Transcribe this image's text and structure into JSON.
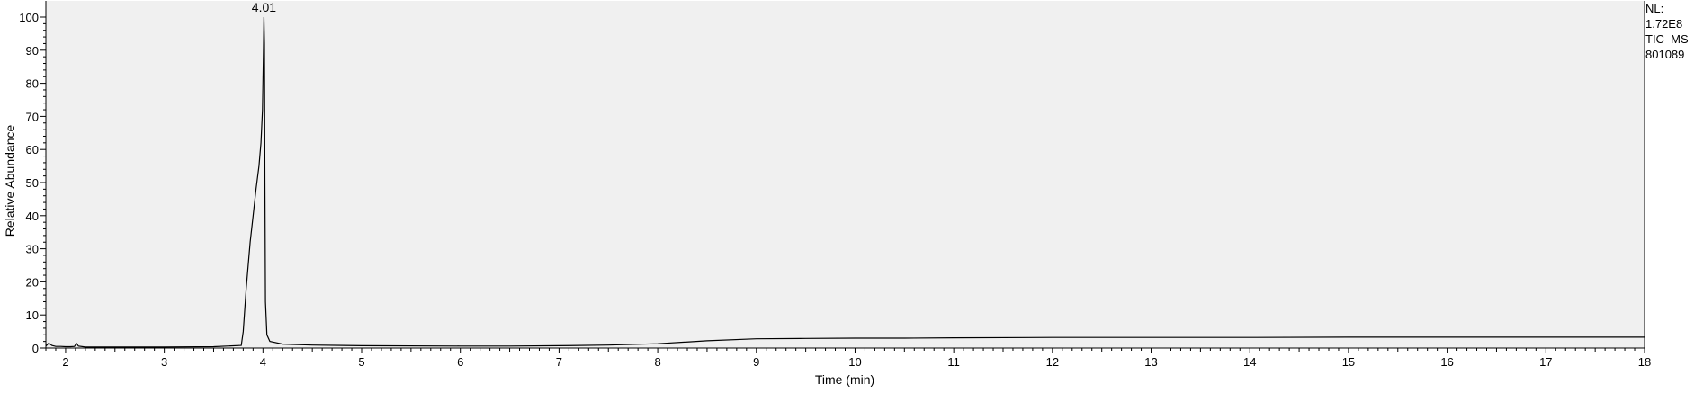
{
  "chart_data": {
    "type": "line",
    "title": "",
    "xlabel": "Time (min)",
    "ylabel": "Relative Abundance",
    "xlim": [
      1.8,
      18
    ],
    "ylim": [
      0,
      100
    ],
    "x_ticks": [
      2,
      3,
      4,
      5,
      6,
      7,
      8,
      9,
      10,
      11,
      12,
      13,
      14,
      15,
      16,
      17,
      18
    ],
    "y_ticks": [
      0,
      10,
      20,
      30,
      40,
      50,
      60,
      70,
      80,
      90,
      100
    ],
    "grid": false,
    "plot_background": "#f0f0f0",
    "line_color": "#000000",
    "peak_annotations": [
      {
        "x": 4.01,
        "y": 100,
        "label": "4.01"
      }
    ],
    "series": [
      {
        "points": [
          [
            1.8,
            0.6
          ],
          [
            1.83,
            1.5
          ],
          [
            1.86,
            0.8
          ],
          [
            1.9,
            0.5
          ],
          [
            1.95,
            0.5
          ],
          [
            2.0,
            0.4
          ],
          [
            2.05,
            0.4
          ],
          [
            2.09,
            0.5
          ],
          [
            2.11,
            1.4
          ],
          [
            2.13,
            0.6
          ],
          [
            2.2,
            0.3
          ],
          [
            2.5,
            0.3
          ],
          [
            3.0,
            0.3
          ],
          [
            3.5,
            0.4
          ],
          [
            3.78,
            0.8
          ],
          [
            3.8,
            5.0
          ],
          [
            3.83,
            18
          ],
          [
            3.87,
            32
          ],
          [
            3.9,
            40
          ],
          [
            3.93,
            48
          ],
          [
            3.96,
            55
          ],
          [
            3.98,
            62
          ],
          [
            3.995,
            72
          ],
          [
            4.005,
            90
          ],
          [
            4.01,
            100
          ],
          [
            4.015,
            92
          ],
          [
            4.02,
            50
          ],
          [
            4.025,
            14
          ],
          [
            4.04,
            4
          ],
          [
            4.07,
            2
          ],
          [
            4.2,
            1.2
          ],
          [
            4.5,
            0.9
          ],
          [
            5.0,
            0.7
          ],
          [
            6.0,
            0.6
          ],
          [
            6.5,
            0.6
          ],
          [
            7.0,
            0.7
          ],
          [
            7.5,
            0.9
          ],
          [
            8.0,
            1.3
          ],
          [
            8.5,
            2.2
          ],
          [
            9.0,
            2.8
          ],
          [
            9.5,
            2.9
          ],
          [
            10.0,
            3.0
          ],
          [
            10.5,
            3.0
          ],
          [
            11.0,
            3.1
          ],
          [
            12.0,
            3.2
          ],
          [
            13.0,
            3.2
          ],
          [
            14.0,
            3.2
          ],
          [
            15.0,
            3.3
          ],
          [
            16.0,
            3.3
          ],
          [
            17.0,
            3.3
          ],
          [
            18.0,
            3.3
          ]
        ]
      }
    ]
  },
  "info": {
    "nl_label": "NL:",
    "nl_value": "1.72E8",
    "scan_type": "TIC  MS",
    "sample_id": "801089"
  }
}
